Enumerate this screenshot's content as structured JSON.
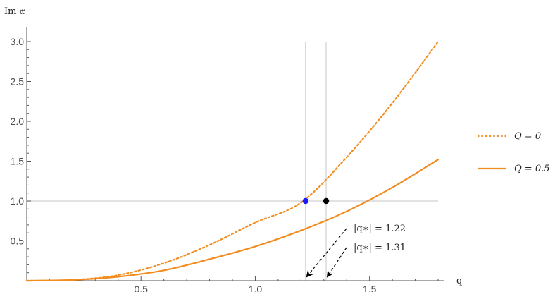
{
  "chart_data": {
    "type": "line",
    "xlabel": "q",
    "ylabel": "Im 𝔴",
    "xlim": [
      0,
      1.8
    ],
    "ylim": [
      0,
      3.0
    ],
    "x_ticks": [
      0.5,
      1.0,
      1.5
    ],
    "x_tick_labels": [
      "0.5",
      "1.0",
      "1.5"
    ],
    "y_ticks": [
      0.5,
      1.0,
      1.5,
      2.0,
      2.5,
      3.0
    ],
    "y_tick_labels": [
      "0.5",
      "1.0",
      "1.5",
      "2.0",
      "2.5",
      "3.0"
    ],
    "series": [
      {
        "name": "Q = 0",
        "style": "dotted",
        "color": "#f28c1e",
        "x": [
          0,
          0.2,
          0.4,
          0.6,
          0.8,
          1.0,
          1.2,
          1.4,
          1.6,
          1.8
        ],
        "y": [
          0,
          0.01,
          0.07,
          0.22,
          0.45,
          0.73,
          0.98,
          1.55,
          2.23,
          3.0
        ]
      },
      {
        "name": "Q = 0.5",
        "style": "solid",
        "color": "#f28c1e",
        "x": [
          0,
          0.2,
          0.4,
          0.6,
          0.8,
          1.0,
          1.2,
          1.4,
          1.6,
          1.8
        ],
        "y": [
          0,
          0.01,
          0.05,
          0.13,
          0.27,
          0.43,
          0.63,
          0.87,
          1.17,
          1.52
        ]
      }
    ],
    "reference_lines": {
      "horizontal": [
        1.0
      ],
      "vertical": [
        1.22,
        1.31
      ]
    },
    "points": [
      {
        "x": 1.22,
        "y": 1.0,
        "color": "#1a1aff"
      },
      {
        "x": 1.31,
        "y": 1.0,
        "color": "#000000"
      }
    ],
    "annotations": [
      {
        "label": "|q∗| = 1.22",
        "arrow_to_x": 1.22
      },
      {
        "label": "|q∗| = 1.31",
        "arrow_to_x": 1.31
      }
    ],
    "legend_position": "right",
    "grid": false
  }
}
